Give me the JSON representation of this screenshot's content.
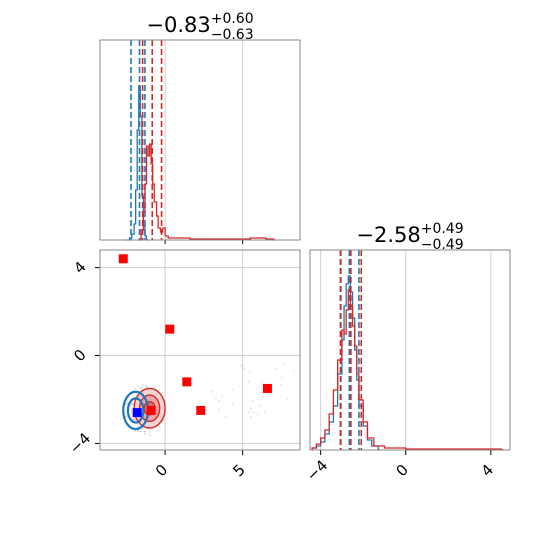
{
  "chart_data": [
    {
      "panel": "top-left",
      "type": "histogram",
      "title": {
        "main": "−0.83",
        "sup": "+0.60",
        "sub": "−0.63"
      },
      "xlim": [
        -4.2,
        8.7
      ],
      "ylim": [
        0,
        1.0
      ],
      "grid": true,
      "x_tick_labels_shown": false,
      "series": [
        {
          "color": "#1f77b4",
          "bins": [
            [
              -2.5,
              0.0
            ],
            [
              -2.3,
              0.01
            ],
            [
              -2.15,
              0.03
            ],
            [
              -2.0,
              0.08
            ],
            [
              -1.9,
              0.25
            ],
            [
              -1.8,
              0.55
            ],
            [
              -1.7,
              0.77
            ],
            [
              -1.6,
              0.62
            ],
            [
              -1.5,
              0.22
            ],
            [
              -1.4,
              0.07
            ],
            [
              -1.3,
              0.02
            ],
            [
              -1.2,
              0.0
            ]
          ],
          "quantile_lines": [
            -2.2,
            -1.65,
            -1.3
          ]
        },
        {
          "color": "#d62728",
          "bins": [
            [
              -1.7,
              0.0
            ],
            [
              -1.55,
              0.05
            ],
            [
              -1.4,
              0.14
            ],
            [
              -1.3,
              0.28
            ],
            [
              -1.2,
              0.47
            ],
            [
              -1.1,
              0.42
            ],
            [
              -1.0,
              0.48
            ],
            [
              -0.9,
              0.38
            ],
            [
              -0.8,
              0.28
            ],
            [
              -0.7,
              0.19
            ],
            [
              -0.55,
              0.12
            ],
            [
              -0.45,
              0.06
            ],
            [
              -0.3,
              0.04
            ],
            [
              -0.15,
              0.06
            ],
            [
              0.0,
              0.02
            ],
            [
              0.2,
              0.01
            ],
            [
              1.0,
              0.01
            ],
            [
              1.6,
              0.005
            ],
            [
              2.5,
              0.005
            ],
            [
              5.5,
              0.01
            ],
            [
              6.5,
              0.005
            ],
            [
              7.0,
              0.0
            ]
          ],
          "quantile_lines": [
            -1.45,
            -0.83,
            -0.23
          ]
        }
      ]
    },
    {
      "panel": "bottom-left",
      "type": "scatter",
      "xlim": [
        -4.2,
        8.7
      ],
      "ylim": [
        -4.3,
        4.8
      ],
      "x_ticks": [
        {
          "value": 0,
          "label": "0"
        },
        {
          "value": 5,
          "label": "5"
        }
      ],
      "y_ticks": [
        {
          "value": -4,
          "label": "−4"
        },
        {
          "value": 0,
          "label": "0"
        },
        {
          "value": 4,
          "label": "4"
        }
      ],
      "grid": true,
      "red_points": [
        [
          -2.7,
          4.4
        ],
        [
          0.3,
          1.2
        ],
        [
          1.4,
          -1.2
        ],
        [
          2.3,
          -2.5
        ],
        [
          6.6,
          -1.5
        ],
        [
          -0.9,
          -2.5
        ]
      ],
      "blue_points": [
        [
          -1.8,
          -2.6
        ]
      ],
      "contours": [
        {
          "color": "#d62728",
          "center": [
            -1.0,
            -2.4
          ],
          "levels": [
            [
              1.0,
              0.9
            ],
            [
              0.65,
              0.6
            ],
            [
              0.35,
              0.3
            ]
          ]
        },
        {
          "color": "#1f77b4",
          "center": [
            -1.9,
            -2.5
          ],
          "levels": [
            [
              0.8,
              0.85
            ],
            [
              0.5,
              0.55
            ]
          ]
        }
      ]
    },
    {
      "panel": "bottom-right",
      "type": "histogram",
      "title": {
        "main": "−2.58",
        "sup": "+0.49",
        "sub": "−0.49"
      },
      "xlim": [
        -4.5,
        4.9
      ],
      "ylim": [
        0,
        1.0
      ],
      "x_ticks": [
        {
          "value": -4,
          "label": "−4"
        },
        {
          "value": 0,
          "label": "0"
        },
        {
          "value": 4,
          "label": "4"
        }
      ],
      "grid": true,
      "series": [
        {
          "color": "#1f77b4",
          "bins": [
            [
              -4.4,
              0.01
            ],
            [
              -4.2,
              0.02
            ],
            [
              -4.0,
              0.04
            ],
            [
              -3.8,
              0.08
            ],
            [
              -3.6,
              0.14
            ],
            [
              -3.4,
              0.22
            ],
            [
              -3.2,
              0.38
            ],
            [
              -3.0,
              0.55
            ],
            [
              -2.9,
              0.72
            ],
            [
              -2.8,
              0.83
            ],
            [
              -2.7,
              0.87
            ],
            [
              -2.6,
              0.79
            ],
            [
              -2.5,
              0.66
            ],
            [
              -2.4,
              0.5
            ],
            [
              -2.3,
              0.35
            ],
            [
              -2.2,
              0.22
            ],
            [
              -2.0,
              0.12
            ],
            [
              -1.8,
              0.05
            ],
            [
              -1.6,
              0.02
            ],
            [
              -1.3,
              0.0
            ]
          ],
          "quantile_lines": [
            -3.05,
            -2.65,
            -2.2
          ]
        },
        {
          "color": "#d62728",
          "bins": [
            [
              -4.4,
              0.01
            ],
            [
              -4.2,
              0.03
            ],
            [
              -4.0,
              0.06
            ],
            [
              -3.8,
              0.1
            ],
            [
              -3.6,
              0.18
            ],
            [
              -3.4,
              0.3
            ],
            [
              -3.2,
              0.45
            ],
            [
              -3.0,
              0.6
            ],
            [
              -2.9,
              0.58
            ],
            [
              -2.8,
              0.7
            ],
            [
              -2.7,
              0.8
            ],
            [
              -2.6,
              0.72
            ],
            [
              -2.5,
              0.62
            ],
            [
              -2.4,
              0.52
            ],
            [
              -2.3,
              0.38
            ],
            [
              -2.2,
              0.25
            ],
            [
              -2.0,
              0.14
            ],
            [
              -1.8,
              0.06
            ],
            [
              -1.5,
              0.02
            ],
            [
              -1.0,
              0.01
            ],
            [
              0.0,
              0.005
            ],
            [
              2.0,
              0.005
            ],
            [
              4.5,
              0.0
            ]
          ],
          "quantile_lines": [
            -3.07,
            -2.58,
            -2.09
          ]
        }
      ]
    }
  ]
}
